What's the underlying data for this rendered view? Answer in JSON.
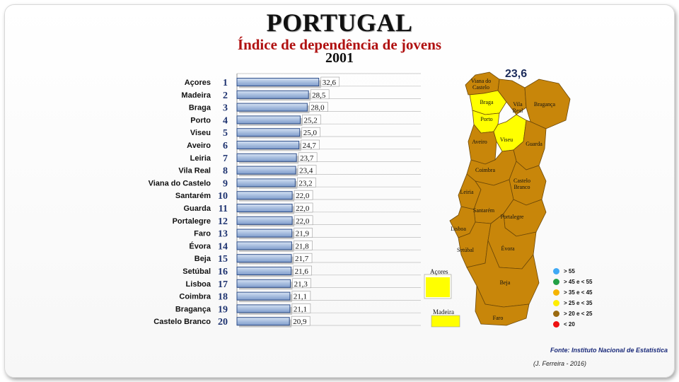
{
  "header": {
    "title": "PORTUGAL",
    "subtitle": "Índice de dependência de jovens",
    "year": "2001"
  },
  "chart_data": {
    "type": "bar",
    "orientation": "horizontal",
    "title": "Índice de dependência de jovens",
    "categories": [
      "Açores",
      "Madeira",
      "Braga",
      "Porto",
      "Viseu",
      "Aveiro",
      "Leiria",
      "Vila Real",
      "Viana do Castelo",
      "Santarém",
      "Guarda",
      "Portalegre",
      "Faro",
      "Évora",
      "Beja",
      "Setúbal",
      "Lisboa",
      "Coimbra",
      "Bragança",
      "Castelo Branco"
    ],
    "ranks": [
      "1",
      "2",
      "3",
      "4",
      "5",
      "6",
      "7",
      "8",
      "9",
      "10",
      "11",
      "12",
      "13",
      "14",
      "15",
      "16",
      "17",
      "18",
      "19",
      "20"
    ],
    "values": [
      32.6,
      28.5,
      28.0,
      25.2,
      25.0,
      24.7,
      23.7,
      23.4,
      23.2,
      22.0,
      22.0,
      22.0,
      21.9,
      21.8,
      21.7,
      21.6,
      21.3,
      21.1,
      21.1,
      20.9
    ],
    "value_labels": [
      "32,6",
      "28,5",
      "28,0",
      "25,2",
      "25,0",
      "24,7",
      "23,7",
      "23,4",
      "23,2",
      "22,0",
      "22,0",
      "22,0",
      "21,9",
      "21,8",
      "21,7",
      "21,6",
      "21,3",
      "21,1",
      "21,1",
      "20,9"
    ],
    "xlim": [
      0,
      40
    ],
    "bar_color": "#a8bedf",
    "grid": true
  },
  "map": {
    "national_value": "23,6",
    "districts": [
      "Viana do Castelo",
      "Braga",
      "Vila Real",
      "Bragança",
      "Porto",
      "Aveiro",
      "Viseu",
      "Guarda",
      "Coimbra",
      "Castelo Branco",
      "Leiria",
      "Santarém",
      "Portalegre",
      "Lisboa",
      "Setúbal",
      "Évora",
      "Beja",
      "Faro"
    ],
    "highlight_districts": [
      "Braga",
      "Porto",
      "Viseu"
    ],
    "insets": [
      "Açores",
      "Madeira"
    ],
    "base_color": "#c8860a",
    "highlight_color": "#ffff00"
  },
  "legend": [
    {
      "label": "> 55",
      "color": "#3fa9f5"
    },
    {
      "label": "> 45 e < 55",
      "color": "#22a045"
    },
    {
      "label": "> 35 e < 45",
      "color": "#f5b400"
    },
    {
      "label": "> 25 e < 35",
      "color": "#ffee00"
    },
    {
      "label": "> 20  e < 25",
      "color": "#9a6a10"
    },
    {
      "label": "< 20",
      "color": "#ee1111"
    }
  ],
  "footer": {
    "source": "Fonte: Instituto Nacional de Estatística",
    "author": "(J. Ferreira - 2016)"
  }
}
